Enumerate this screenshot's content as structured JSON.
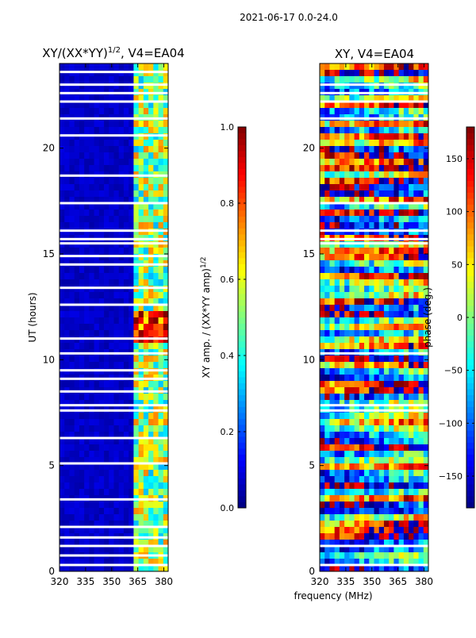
{
  "header": {
    "title": "2021-06-17 0.0-24.0"
  },
  "shared": {
    "xlabel": "frequency (MHz)",
    "x_ticks": [
      320,
      335,
      350,
      365,
      380
    ],
    "xlim": [
      320,
      382.5
    ],
    "ylabel": "UT (hours)",
    "y_ticks": [
      0,
      5,
      10,
      15,
      20
    ],
    "ylim": [
      0,
      24
    ]
  },
  "chart_data": [
    {
      "type": "heatmap",
      "title_main": "XY/(XX*YY)",
      "title_sup": "1/2",
      "title_tail": ", V4=EA04",
      "colorbar": {
        "label_main": "XY amp. / (XX*YY amp)",
        "label_sup": "1/2",
        "ticks": [
          "0.0",
          "0.2",
          "0.4",
          "0.6",
          "0.8",
          "1.0"
        ],
        "tick_values": [
          0,
          0.2,
          0.4,
          0.6,
          0.8,
          1.0
        ],
        "range": [
          0,
          1
        ],
        "colormap": "jet"
      },
      "flagged_utc_hours": [
        0.3,
        0.75,
        1.2,
        1.6,
        2.1,
        3.4,
        5.1,
        6.3,
        7.6,
        7.85,
        8.5,
        9.1,
        9.5,
        10.3,
        11.0,
        12.6,
        13.4,
        14.5,
        14.9,
        15.5,
        15.7,
        16.1,
        17.4,
        18.7,
        20.6,
        21.4,
        22.2,
        22.6,
        23.0,
        23.6
      ],
      "notes": "Low values (~0.05) below 363 MHz; elevated noisy values 0.3-0.9 in 363-382 MHz columns; strong feature near 11-12 UT."
    },
    {
      "type": "heatmap",
      "title_main": "XY, V4=EA04",
      "colorbar": {
        "label_main": "phase (deg.)",
        "ticks": [
          "−150",
          "−100",
          "−50",
          "0",
          "50",
          "100",
          "150"
        ],
        "tick_values": [
          -150,
          -100,
          -50,
          0,
          50,
          100,
          150
        ],
        "range": [
          -180,
          180
        ],
        "colormap": "jet"
      },
      "flagged_utc_hours": [
        0.3,
        1.2,
        7.6,
        7.85,
        10.3,
        15.5,
        15.7,
        16.1,
        17.4,
        21.4,
        22.2,
        22.6,
        23.0
      ],
      "notes": "Phase spans full range with banded structure versus time."
    }
  ],
  "colors": {
    "axis": "#000000",
    "flag": "#ffffff"
  }
}
